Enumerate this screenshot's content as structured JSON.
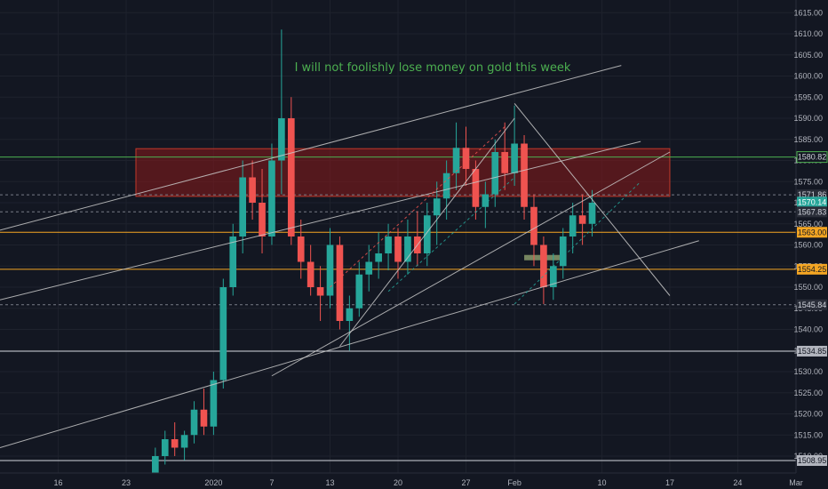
{
  "colors": {
    "background": "#131722",
    "grid": "#1e222d",
    "up": "#26a69a",
    "down": "#ef5350",
    "axis_text": "#b2b5be",
    "zone_fill": "#8b1a1a",
    "zone_stroke": "#c0392b",
    "trendline": "#c8c8c8",
    "annotation": "#4caf50",
    "support_orange": "#f5a623",
    "current_price": "#26a69a"
  },
  "chart_data": {
    "type": "candlestick",
    "instrument_hint": "gold",
    "annotation": "I will not foolishly lose money on gold this week",
    "y_axis": {
      "side": "right",
      "range": [
        1506,
        1618
      ],
      "ticks": [
        1510,
        1515,
        1520,
        1525,
        1530,
        1535,
        1540,
        1545,
        1550,
        1555,
        1560,
        1565,
        1570,
        1575,
        1580,
        1585,
        1590,
        1595,
        1600,
        1605,
        1610,
        1615
      ]
    },
    "x_axis": {
      "range": [
        "2019-12-10",
        "2020-03-01"
      ],
      "ticks": [
        {
          "date": "2019-12-16",
          "label": "16"
        },
        {
          "date": "2019-12-23",
          "label": "23"
        },
        {
          "date": "2020-01-01",
          "label": "2020"
        },
        {
          "date": "2020-01-07",
          "label": "7"
        },
        {
          "date": "2020-01-13",
          "label": "13"
        },
        {
          "date": "2020-01-20",
          "label": "20"
        },
        {
          "date": "2020-01-27",
          "label": "27"
        },
        {
          "date": "2020-02-01",
          "label": "Feb"
        },
        {
          "date": "2020-02-10",
          "label": "10"
        },
        {
          "date": "2020-02-17",
          "label": "17"
        },
        {
          "date": "2020-02-24",
          "label": "24"
        },
        {
          "date": "2020-03-01",
          "label": "Mar"
        }
      ]
    },
    "price_labels": [
      {
        "value": 1580.82,
        "text": "1580.82",
        "style": "dark-outline-green"
      },
      {
        "value": 1571.86,
        "text": "1571.86",
        "style": "dark"
      },
      {
        "value": 1570.14,
        "text": "1570.14",
        "style": "current"
      },
      {
        "value": 1567.83,
        "text": "1567.83",
        "style": "dark"
      },
      {
        "value": 1563.0,
        "text": "1563.00",
        "style": "orange"
      },
      {
        "value": 1554.25,
        "text": "1554.25",
        "style": "orange"
      },
      {
        "value": 1545.84,
        "text": "1545.84",
        "style": "dark"
      },
      {
        "value": 1534.85,
        "text": "1534.85",
        "style": "gray"
      },
      {
        "value": 1508.95,
        "text": "1508.95",
        "style": "gray"
      }
    ],
    "horizontal_lines": [
      {
        "value": 1580.82,
        "color": "#4caf50",
        "dashed": false
      },
      {
        "value": 1571.86,
        "color": "#787b86",
        "dashed": true
      },
      {
        "value": 1567.83,
        "color": "#787b86",
        "dashed": true
      },
      {
        "value": 1563.0,
        "color": "#f5a623",
        "dashed": false
      },
      {
        "value": 1554.25,
        "color": "#f5a623",
        "dashed": false
      },
      {
        "value": 1545.84,
        "color": "#787b86",
        "dashed": true
      },
      {
        "value": 1534.85,
        "color": "#d1d4dc",
        "dashed": false
      },
      {
        "value": 1508.95,
        "color": "#d1d4dc",
        "dashed": false
      }
    ],
    "resistance_zone": {
      "x1": "2019-12-24",
      "x2": "2020-02-17",
      "y1": 1571.5,
      "y2": 1582.8
    },
    "support_marker": {
      "x1": "2020-02-02",
      "x2": "2020-02-06",
      "y": 1557
    },
    "trendlines": [
      {
        "x1": "2019-12-10",
        "y1": 1563.5,
        "x2": "2020-02-12",
        "y2": 1602.5,
        "color": "#c8c8c8",
        "dashed": false
      },
      {
        "x1": "2019-12-10",
        "y1": 1547.0,
        "x2": "2020-02-14",
        "y2": 1584.5,
        "color": "#c8c8c8",
        "dashed": false
      },
      {
        "x1": "2019-12-10",
        "y1": 1512.0,
        "x2": "2020-02-20",
        "y2": 1561.0,
        "color": "#c8c8c8",
        "dashed": false
      },
      {
        "x1": "2020-01-07",
        "y1": 1529.0,
        "x2": "2020-02-17",
        "y2": 1582.0,
        "color": "#c8c8c8",
        "dashed": false
      },
      {
        "x1": "2020-01-14",
        "y1": 1536.0,
        "x2": "2020-02-01",
        "y2": 1590.0,
        "color": "#c8c8c8",
        "dashed": false
      },
      {
        "x1": "2020-02-01",
        "y1": 1593.5,
        "x2": "2020-02-17",
        "y2": 1548.0,
        "color": "#c8c8c8",
        "dashed": false
      },
      {
        "x1": "2020-01-13",
        "y1": 1550.0,
        "x2": "2020-01-31",
        "y2": 1588.0,
        "color": "#ef5350",
        "dashed": true
      },
      {
        "x1": "2020-01-19",
        "y1": 1549.0,
        "x2": "2020-02-01",
        "y2": 1576.0,
        "color": "#26a69a",
        "dashed": true
      },
      {
        "x1": "2020-02-01",
        "y1": 1546.0,
        "x2": "2020-02-14",
        "y2": 1575.0,
        "color": "#26a69a",
        "dashed": true
      }
    ],
    "candles": [
      {
        "t": "2019-12-26",
        "o": 1505,
        "h": 1512,
        "l": 1503,
        "c": 1510
      },
      {
        "t": "2019-12-27",
        "o": 1510,
        "h": 1516,
        "l": 1508,
        "c": 1514
      },
      {
        "t": "2019-12-28",
        "o": 1514,
        "h": 1518,
        "l": 1510,
        "c": 1512
      },
      {
        "t": "2019-12-29",
        "o": 1512,
        "h": 1516,
        "l": 1509,
        "c": 1515
      },
      {
        "t": "2019-12-30",
        "o": 1515,
        "h": 1523,
        "l": 1513,
        "c": 1521
      },
      {
        "t": "2019-12-31",
        "o": 1521,
        "h": 1526,
        "l": 1515,
        "c": 1517
      },
      {
        "t": "2020-01-01",
        "o": 1517,
        "h": 1530,
        "l": 1515,
        "c": 1528
      },
      {
        "t": "2020-01-02",
        "o": 1528,
        "h": 1552,
        "l": 1526,
        "c": 1550
      },
      {
        "t": "2020-01-03",
        "o": 1550,
        "h": 1565,
        "l": 1548,
        "c": 1562
      },
      {
        "t": "2020-01-04",
        "o": 1562,
        "h": 1580,
        "l": 1558,
        "c": 1576
      },
      {
        "t": "2020-01-05",
        "o": 1576,
        "h": 1580,
        "l": 1566,
        "c": 1570
      },
      {
        "t": "2020-01-06",
        "o": 1570,
        "h": 1578,
        "l": 1558,
        "c": 1562
      },
      {
        "t": "2020-01-07",
        "o": 1562,
        "h": 1584,
        "l": 1560,
        "c": 1580
      },
      {
        "t": "2020-01-08",
        "o": 1580,
        "h": 1611,
        "l": 1572,
        "c": 1590
      },
      {
        "t": "2020-01-09",
        "o": 1590,
        "h": 1595,
        "l": 1560,
        "c": 1562
      },
      {
        "t": "2020-01-10",
        "o": 1562,
        "h": 1566,
        "l": 1552,
        "c": 1556
      },
      {
        "t": "2020-01-11",
        "o": 1556,
        "h": 1560,
        "l": 1548,
        "c": 1550
      },
      {
        "t": "2020-01-12",
        "o": 1550,
        "h": 1555,
        "l": 1542,
        "c": 1548
      },
      {
        "t": "2020-01-13",
        "o": 1548,
        "h": 1564,
        "l": 1545,
        "c": 1560
      },
      {
        "t": "2020-01-14",
        "o": 1560,
        "h": 1562,
        "l": 1540,
        "c": 1542
      },
      {
        "t": "2020-01-15",
        "o": 1542,
        "h": 1548,
        "l": 1535,
        "c": 1545
      },
      {
        "t": "2020-01-16",
        "o": 1545,
        "h": 1556,
        "l": 1543,
        "c": 1553
      },
      {
        "t": "2020-01-17",
        "o": 1553,
        "h": 1560,
        "l": 1549,
        "c": 1556
      },
      {
        "t": "2020-01-18",
        "o": 1556,
        "h": 1563,
        "l": 1552,
        "c": 1558
      },
      {
        "t": "2020-01-19",
        "o": 1558,
        "h": 1565,
        "l": 1554,
        "c": 1562
      },
      {
        "t": "2020-01-20",
        "o": 1562,
        "h": 1564,
        "l": 1552,
        "c": 1556
      },
      {
        "t": "2020-01-21",
        "o": 1556,
        "h": 1566,
        "l": 1553,
        "c": 1562
      },
      {
        "t": "2020-01-22",
        "o": 1562,
        "h": 1568,
        "l": 1555,
        "c": 1558
      },
      {
        "t": "2020-01-23",
        "o": 1558,
        "h": 1570,
        "l": 1555,
        "c": 1567
      },
      {
        "t": "2020-01-24",
        "o": 1567,
        "h": 1575,
        "l": 1560,
        "c": 1571
      },
      {
        "t": "2020-01-25",
        "o": 1571,
        "h": 1580,
        "l": 1566,
        "c": 1577
      },
      {
        "t": "2020-01-26",
        "o": 1577,
        "h": 1589,
        "l": 1573,
        "c": 1583
      },
      {
        "t": "2020-01-27",
        "o": 1583,
        "h": 1588,
        "l": 1574,
        "c": 1578
      },
      {
        "t": "2020-01-28",
        "o": 1578,
        "h": 1580,
        "l": 1566,
        "c": 1569
      },
      {
        "t": "2020-01-29",
        "o": 1569,
        "h": 1575,
        "l": 1564,
        "c": 1572
      },
      {
        "t": "2020-01-30",
        "o": 1572,
        "h": 1585,
        "l": 1569,
        "c": 1582
      },
      {
        "t": "2020-01-31",
        "o": 1582,
        "h": 1589,
        "l": 1573,
        "c": 1577
      },
      {
        "t": "2020-02-01",
        "o": 1577,
        "h": 1593,
        "l": 1574,
        "c": 1584
      },
      {
        "t": "2020-02-02",
        "o": 1584,
        "h": 1586,
        "l": 1566,
        "c": 1569
      },
      {
        "t": "2020-02-03",
        "o": 1569,
        "h": 1572,
        "l": 1555,
        "c": 1560
      },
      {
        "t": "2020-02-04",
        "o": 1560,
        "h": 1562,
        "l": 1546,
        "c": 1550
      },
      {
        "t": "2020-02-05",
        "o": 1550,
        "h": 1558,
        "l": 1547,
        "c": 1555
      },
      {
        "t": "2020-02-06",
        "o": 1555,
        "h": 1564,
        "l": 1552,
        "c": 1562
      },
      {
        "t": "2020-02-07",
        "o": 1562,
        "h": 1570,
        "l": 1558,
        "c": 1567
      },
      {
        "t": "2020-02-08",
        "o": 1567,
        "h": 1572,
        "l": 1560,
        "c": 1565
      },
      {
        "t": "2020-02-09",
        "o": 1565,
        "h": 1573,
        "l": 1562,
        "c": 1570
      }
    ]
  }
}
